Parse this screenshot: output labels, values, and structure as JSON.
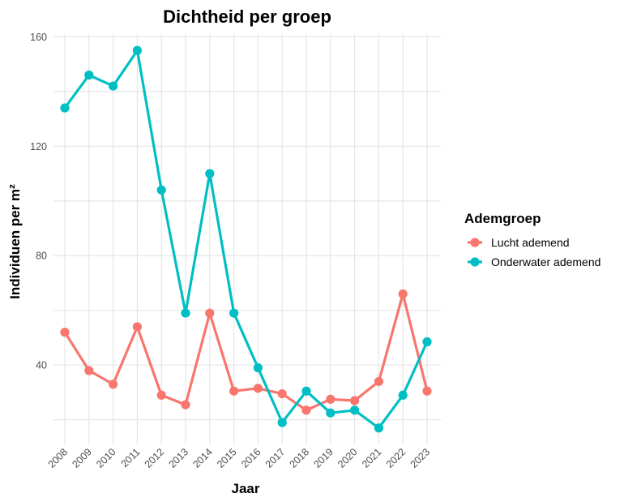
{
  "chart_data": {
    "type": "line",
    "title": "Dichtheid per groep",
    "xlabel": "Jaar",
    "ylabel": "Individuen per m²",
    "x": [
      "2008",
      "2009",
      "2010",
      "2011",
      "2012",
      "2013",
      "2014",
      "2015",
      "2016",
      "2017",
      "2018",
      "2019",
      "2020",
      "2021",
      "2022",
      "2023"
    ],
    "yticks": [
      40,
      80,
      120,
      160
    ],
    "ylim": [
      11,
      161
    ],
    "grid": true,
    "legend_position": "right",
    "legend_title": "Ademgroep",
    "series": [
      {
        "name": "Lucht ademend",
        "color": "#F8766D",
        "values": [
          52,
          38,
          33,
          54,
          29,
          25.5,
          59,
          30.5,
          31.5,
          29.5,
          23.5,
          27.5,
          27,
          34,
          66,
          30.5
        ]
      },
      {
        "name": "Onderwater ademend",
        "color": "#00BFC4",
        "values": [
          134,
          146,
          142,
          155,
          104,
          59,
          110,
          59,
          39,
          19,
          30.5,
          22.5,
          23.5,
          17,
          29,
          48.5
        ]
      }
    ]
  }
}
